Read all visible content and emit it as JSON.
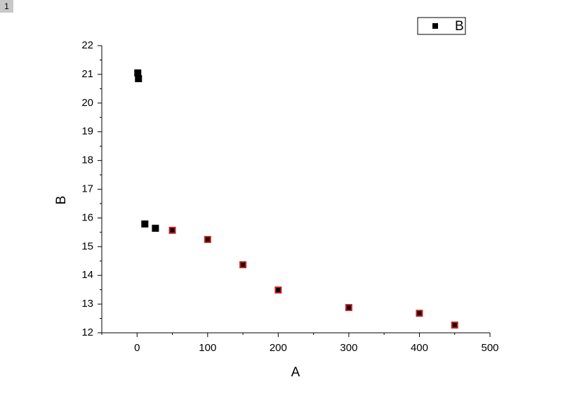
{
  "layer_label": "1",
  "chart_data": {
    "type": "scatter",
    "xlabel": "A",
    "ylabel": "B",
    "xlim": [
      -50,
      500
    ],
    "ylim": [
      12,
      22
    ],
    "xticks": [
      0,
      100,
      200,
      300,
      400,
      500
    ],
    "xminorticks": [
      -50,
      50,
      150,
      250,
      350,
      450
    ],
    "yticks": [
      12,
      13,
      14,
      15,
      16,
      17,
      18,
      19,
      20,
      21,
      22
    ],
    "yminorticks": [
      12.5,
      13.5,
      14.5,
      15.5,
      16.5,
      17.5,
      18.5,
      19.5,
      20.5,
      21.5
    ],
    "grid": false,
    "legend": "top-right",
    "series": [
      {
        "name": "B",
        "color": "#000000",
        "x": [
          1,
          2,
          11,
          26,
          50,
          100,
          150,
          200,
          300,
          400,
          450
        ],
        "values": [
          21.05,
          20.85,
          15.79,
          15.64,
          15.57,
          15.25,
          14.37,
          13.49,
          12.88,
          12.68,
          12.27
        ],
        "edge_colors": [
          "#000000",
          "#000000",
          "#000000",
          "#000000",
          "#cc2222",
          "#cc2222",
          "#cc2222",
          "#cc2222",
          "#cc2222",
          "#cc2222",
          "#cc2222"
        ]
      }
    ]
  }
}
